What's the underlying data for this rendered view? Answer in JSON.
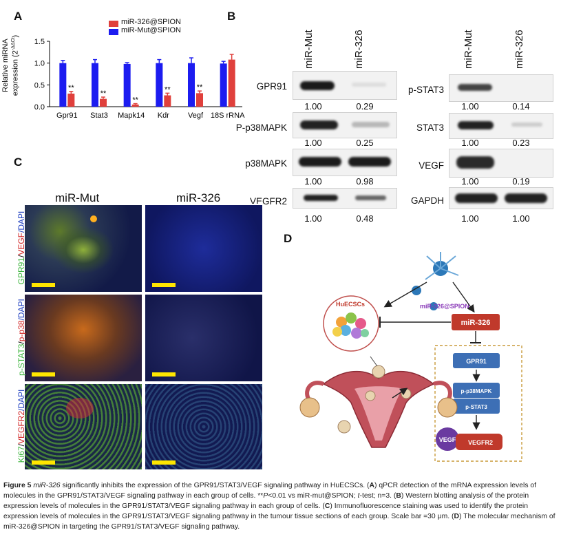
{
  "panel_labels": {
    "a": "A",
    "b": "B",
    "c": "C",
    "d": "D"
  },
  "chart_data": {
    "type": "bar",
    "categories": [
      "Gpr91",
      "Stat3",
      "Mapk14",
      "Kdr",
      "Vegf",
      "18S rRNA"
    ],
    "series": [
      {
        "name": "miR-326@SPION",
        "color": "#e0403c",
        "values": [
          0.3,
          0.18,
          0.05,
          0.26,
          0.31,
          1.08
        ],
        "errors": [
          0.05,
          0.04,
          0.02,
          0.05,
          0.05,
          0.12
        ],
        "significance": [
          "**",
          "**",
          "**",
          "**",
          "**",
          ""
        ]
      },
      {
        "name": "miR-Mut@SPION",
        "color": "#1c1cf0",
        "values": [
          1.0,
          1.0,
          0.98,
          1.0,
          1.0,
          0.99
        ],
        "errors": [
          0.06,
          0.08,
          0.03,
          0.08,
          0.12,
          0.05
        ]
      }
    ],
    "ylabel_line1": "Relative miRNA",
    "ylabel_line2": "expression (2",
    "ylabel_sup": "-ΔΔCt",
    "ylabel_end": ")",
    "ylim": [
      0,
      1.5
    ],
    "yticks": [
      "0.0",
      "0.5",
      "1.0",
      "1.5"
    ]
  },
  "blot_left": {
    "columns": [
      "miR-Mut",
      "miR-326"
    ],
    "rows": [
      {
        "name": "GPR91",
        "values": [
          "1.00",
          "0.29"
        ]
      },
      {
        "name": "P-p38MAPK",
        "values": [
          "1.00",
          "0.25"
        ]
      },
      {
        "name": "p38MAPK",
        "values": [
          "1.00",
          "0.98"
        ]
      },
      {
        "name": "VEGFR2",
        "values": [
          "1.00",
          "0.48"
        ]
      }
    ]
  },
  "blot_right": {
    "columns": [
      "miR-Mut",
      "miR-326"
    ],
    "rows": [
      {
        "name": "p-STAT3",
        "values": [
          "1.00",
          "0.14"
        ]
      },
      {
        "name": "STAT3",
        "values": [
          "1.00",
          "0.23"
        ]
      },
      {
        "name": "VEGF",
        "values": [
          "1.00",
          "0.19"
        ]
      },
      {
        "name": "GAPDH",
        "values": [
          "1.00",
          "1.00"
        ]
      }
    ]
  },
  "if_panel": {
    "columns": [
      "miR-Mut",
      "miR-326"
    ],
    "rows": [
      {
        "parts": [
          {
            "t": "GPR91",
            "c": "#3cb43c"
          },
          {
            "t": "/",
            "c": "#333"
          },
          {
            "t": "VEGF",
            "c": "#d02020"
          },
          {
            "t": "/DAPI",
            "c": "#2040c0"
          }
        ]
      },
      {
        "parts": [
          {
            "t": "p-STAT3",
            "c": "#3cb43c"
          },
          {
            "t": "/",
            "c": "#333"
          },
          {
            "t": "p-p38",
            "c": "#d02020"
          },
          {
            "t": "/DAPI",
            "c": "#2040c0"
          }
        ]
      },
      {
        "parts": [
          {
            "t": "Ki67",
            "c": "#3cb43c"
          },
          {
            "t": "/",
            "c": "#333"
          },
          {
            "t": "VEGFR2",
            "c": "#d02020"
          },
          {
            "t": "/DAPI",
            "c": "#2040c0"
          }
        ]
      }
    ]
  },
  "diagram": {
    "nano_label": "miR-326@SPION",
    "huecsc_label": "HuECSCs",
    "mir_label": "miR-326",
    "pathway": [
      "GPR91",
      "p-p38MAPK",
      "p-STAT3",
      "VEGF",
      "VEGFR2"
    ]
  },
  "caption": {
    "figure": "Figure 5",
    "mir": "miR-326",
    "s1": " significantly inhibits the expression of the GPR91/STAT3/VEGF signaling pathway in HuECSCs. (",
    "lA": "A",
    "s2": ") qPCR detection of the mRNA expression levels of molecules in the GPR91/STAT3/VEGF signaling pathway in each group of cells. **",
    "p": "P",
    "s3": "<0.01 vs miR-mut@SPION; ",
    "t": "t",
    "s4": "-test; n=3. (",
    "lB": "B",
    "s5": ") Western blotting analysis of the protein expression levels of molecules in the GPR91/STAT3/VEGF signaling pathway in each group of cells. (",
    "lC": "C",
    "s6": ") Immunofluorescence staining was used to identify the protein expression levels of molecules in the GPR91/STAT3/VEGF signaling pathway in the tumour tissue sections of each group. Scale bar =30 μm. (",
    "lD": "D",
    "s7": ") The molecular mechanism of miR-326@SPION in targeting the GPR91/STAT3/VEGF signaling pathway."
  }
}
